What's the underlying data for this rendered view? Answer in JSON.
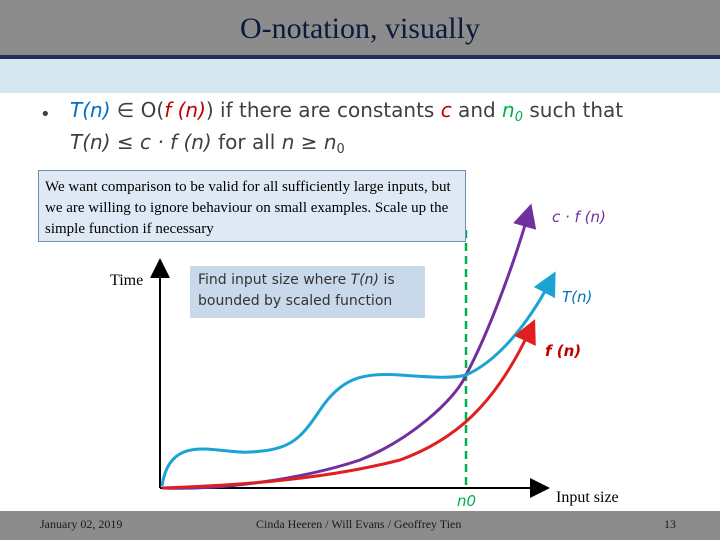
{
  "slide": {
    "title": "O-notation, visually",
    "bullet": {
      "line1": {
        "t_n": "T(n)",
        "in_O": " ∈ O(",
        "f_n": "f (n)",
        "close": ")",
        "text": " if there are constants ",
        "c": "c",
        "and": " and ",
        "n": "n",
        "n_sub": "0",
        "such_that": " such that"
      },
      "line2": {
        "t_n": "T(n)",
        "leq": " ≤ ",
        "c_f": "c · f (n)",
        "for_all": " for all ",
        "n": "n",
        "geq": " ≥ ",
        "n0": "n",
        "n0_sub": "0"
      }
    },
    "note": "We want comparison to be valid for all sufficiently large inputs, but we are willing to ignore behaviour on small examples. Scale up the simple function if necessary",
    "find_box": {
      "text_a": "Find input size where ",
      "t_n": "T(n)",
      "text_b": " is bounded by scaled function"
    }
  },
  "diagram": {
    "y_axis_label": "Time",
    "x_axis_label": "Input size",
    "curves": [
      {
        "label": "c · f (n)",
        "color": "#7030a0"
      },
      {
        "label": "T(n)",
        "color": "#1aa3d4"
      },
      {
        "label": "f (n)",
        "color": "#e02020"
      }
    ],
    "threshold_label": "n0",
    "threshold_color": "#00b050"
  },
  "footer": {
    "date": "January 02, 2019",
    "authors": "Cinda Heeren / Will Evans / Geoffrey Tien",
    "page": "13"
  }
}
